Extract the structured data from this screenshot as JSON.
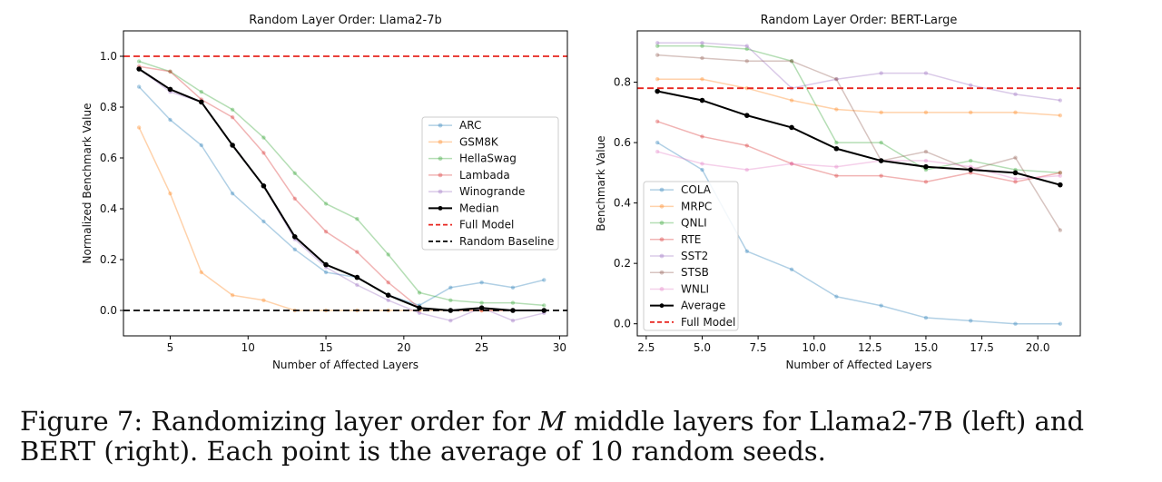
{
  "colors": {
    "ARC": "#1f77b4",
    "GSM8K": "#ff7f0e",
    "HellaSwag": "#2ca02c",
    "Lambada": "#d62728",
    "Winogrande": "#9467bd",
    "COLA": "#1f77b4",
    "MRPC": "#ff7f0e",
    "QNLI": "#2ca02c",
    "RTE": "#d62728",
    "SST2": "#9467bd",
    "STSB": "#8c564b",
    "WNLI": "#e377c2",
    "median": "#000000",
    "full_model": "#e8251f",
    "random_baseline": "#000000"
  },
  "chart_data": [
    {
      "type": "line",
      "title": "Random Layer Order: Llama2-7b",
      "xlabel": "Number of Affected Layers",
      "ylabel": "Normalized Benchmark Value",
      "xlim": [
        2,
        30.5
      ],
      "ylim": [
        -0.1,
        1.1
      ],
      "xticks": [
        5,
        10,
        15,
        20,
        25,
        30
      ],
      "xtick_labels": [
        "5",
        "10",
        "15",
        "20",
        "25",
        "30"
      ],
      "yticks": [
        0.0,
        0.2,
        0.4,
        0.6,
        0.8,
        1.0
      ],
      "ytick_labels": [
        "0.0",
        "0.2",
        "0.4",
        "0.6",
        "0.8",
        "1.0"
      ],
      "grid": false,
      "legend_position": "center-right",
      "x": [
        3,
        5,
        7,
        9,
        11,
        13,
        15,
        17,
        19,
        21,
        23,
        25,
        27,
        29
      ],
      "series": [
        {
          "name": "ARC",
          "values": [
            0.88,
            0.75,
            0.65,
            0.46,
            0.35,
            0.24,
            0.15,
            0.13,
            0.06,
            0.02,
            0.09,
            0.11,
            0.09,
            0.12
          ]
        },
        {
          "name": "GSM8K",
          "values": [
            0.72,
            0.46,
            0.15,
            0.06,
            0.04,
            0.0,
            0.0,
            0.0,
            0.0,
            0.0,
            0.0,
            0.0,
            0.0,
            0.0
          ]
        },
        {
          "name": "HellaSwag",
          "values": [
            0.98,
            0.94,
            0.86,
            0.79,
            0.68,
            0.54,
            0.42,
            0.36,
            0.22,
            0.07,
            0.04,
            0.03,
            0.03,
            0.02
          ]
        },
        {
          "name": "Lambada",
          "values": [
            0.96,
            0.94,
            0.83,
            0.76,
            0.62,
            0.44,
            0.31,
            0.23,
            0.11,
            0.01,
            0.0,
            0.0,
            0.0,
            0.0
          ]
        },
        {
          "name": "Winogrande",
          "values": [
            0.95,
            0.86,
            0.82,
            0.65,
            0.49,
            0.28,
            0.17,
            0.1,
            0.04,
            -0.01,
            -0.04,
            0.01,
            -0.04,
            -0.01
          ]
        },
        {
          "name": "Median",
          "values": [
            0.95,
            0.87,
            0.82,
            0.65,
            0.49,
            0.29,
            0.18,
            0.13,
            0.06,
            0.01,
            0.0,
            0.01,
            0.0,
            0.0
          ]
        }
      ],
      "reference_lines": [
        {
          "name": "Full Model",
          "y": 1.0
        },
        {
          "name": "Random Baseline",
          "y": 0.0
        }
      ]
    },
    {
      "type": "line",
      "title": "Random Layer Order: BERT-Large",
      "xlabel": "Number of Affected Layers",
      "ylabel": "Benchmark Value",
      "xlim": [
        2.1,
        21.9
      ],
      "ylim": [
        -0.04,
        0.97
      ],
      "xticks": [
        2.5,
        5.0,
        7.5,
        10.0,
        12.5,
        15.0,
        17.5,
        20.0
      ],
      "xtick_labels": [
        "2.5",
        "5.0",
        "7.5",
        "10.0",
        "12.5",
        "15.0",
        "17.5",
        "20.0"
      ],
      "yticks": [
        0.0,
        0.2,
        0.4,
        0.6,
        0.8
      ],
      "ytick_labels": [
        "0.0",
        "0.2",
        "0.4",
        "0.6",
        "0.8"
      ],
      "grid": false,
      "legend_position": "lower-left",
      "x": [
        3,
        5,
        7,
        9,
        11,
        13,
        15,
        17,
        19,
        21
      ],
      "series": [
        {
          "name": "COLA",
          "values": [
            0.6,
            0.51,
            0.24,
            0.18,
            0.09,
            0.06,
            0.02,
            0.01,
            0.0,
            0.0
          ]
        },
        {
          "name": "MRPC",
          "values": [
            0.81,
            0.81,
            0.78,
            0.74,
            0.71,
            0.7,
            0.7,
            0.7,
            0.7,
            0.69
          ]
        },
        {
          "name": "QNLI",
          "values": [
            0.92,
            0.92,
            0.91,
            0.87,
            0.6,
            0.6,
            0.51,
            0.54,
            0.51,
            0.5
          ]
        },
        {
          "name": "RTE",
          "values": [
            0.67,
            0.62,
            0.59,
            0.53,
            0.49,
            0.49,
            0.47,
            0.5,
            0.47,
            0.5
          ]
        },
        {
          "name": "SST2",
          "values": [
            0.93,
            0.93,
            0.92,
            0.78,
            0.81,
            0.83,
            0.83,
            0.79,
            0.76,
            0.74
          ]
        },
        {
          "name": "STSB",
          "values": [
            0.89,
            0.88,
            0.87,
            0.87,
            0.81,
            0.54,
            0.57,
            0.51,
            0.55,
            0.31
          ]
        },
        {
          "name": "WNLI",
          "values": [
            0.57,
            0.53,
            0.51,
            0.53,
            0.52,
            0.54,
            0.54,
            0.52,
            0.48,
            0.49
          ]
        },
        {
          "name": "Average",
          "values": [
            0.77,
            0.74,
            0.69,
            0.65,
            0.58,
            0.54,
            0.52,
            0.51,
            0.5,
            0.46
          ]
        }
      ],
      "reference_lines": [
        {
          "name": "Full Model",
          "y": 0.78
        }
      ]
    }
  ],
  "caption": {
    "prefix": "Figure 7: Randomizing layer order for ",
    "italic": "M",
    "suffix": " middle layers for Llama2-7B (left) and BERT (right). Each point is the average of 10 random seeds."
  }
}
